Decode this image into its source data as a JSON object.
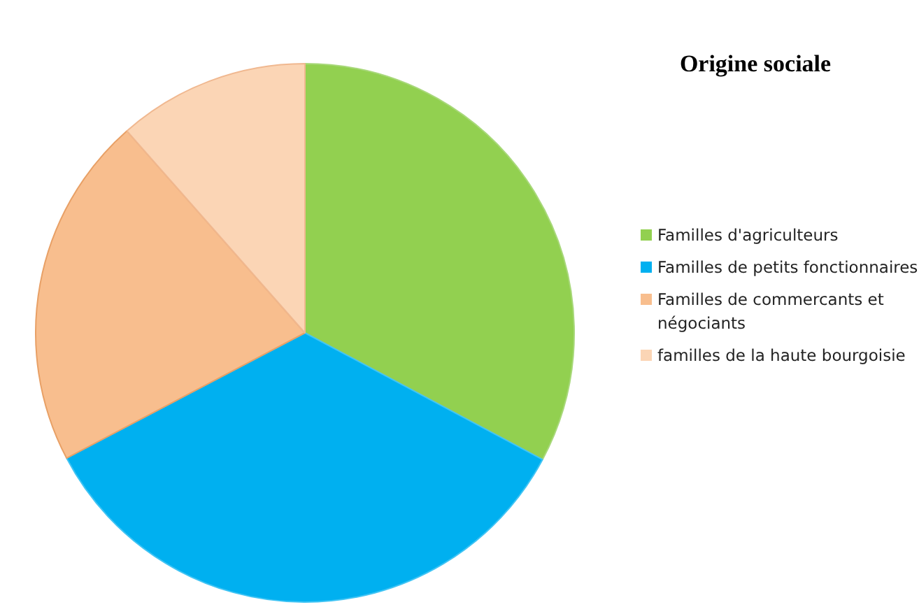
{
  "chart_data": {
    "type": "pie",
    "title": "Origine sociale",
    "categories": [
      "Familles d'agriculteurs",
      "Familles de petits fonctionnaires",
      "Familles de commercants et négociants",
      "familles de la haute bourgoisie"
    ],
    "values": [
      32.8,
      34.5,
      21.2,
      11.5
    ],
    "colors": [
      "#92d050",
      "#00b0f0",
      "#f8be8e",
      "#fbd5b5"
    ],
    "legend": "right"
  }
}
